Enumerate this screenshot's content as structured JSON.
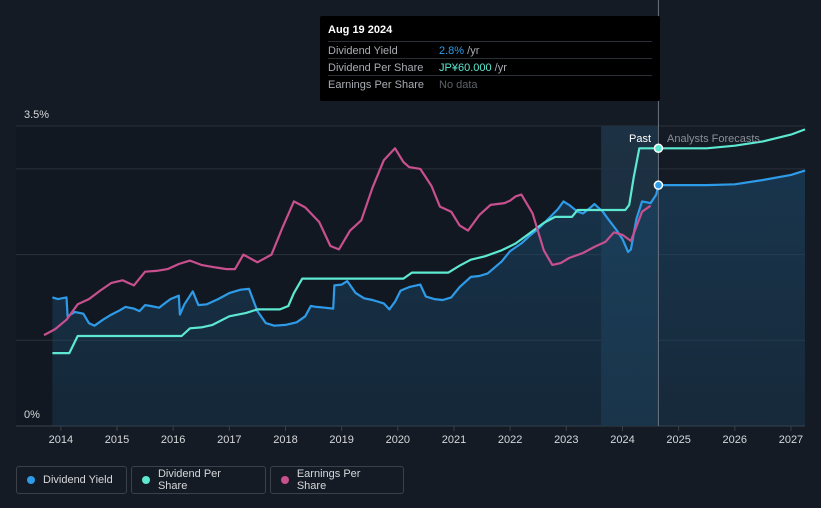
{
  "tooltip": {
    "date": "Aug 19 2024",
    "rows": [
      {
        "label": "Dividend Yield",
        "value": "2.8%",
        "unit": " /yr",
        "color": "#2e9be8"
      },
      {
        "label": "Dividend Per Share",
        "value": "JP¥60.000",
        "unit": " /yr",
        "color": "#5de8d2"
      },
      {
        "label": "Earnings Per Share",
        "value": "No data",
        "unit": "",
        "color": "#5c6168"
      }
    ]
  },
  "chart_data": {
    "type": "line",
    "ylim_label_top": "3.5%",
    "ylim_label_bottom": "0%",
    "ylim": [
      0,
      3.5
    ],
    "x_ticks": [
      "2014",
      "2015",
      "2016",
      "2017",
      "2018",
      "2019",
      "2020",
      "2021",
      "2022",
      "2023",
      "2024",
      "2025",
      "2026",
      "2027"
    ],
    "xlim": [
      2013.7,
      2027.25
    ],
    "past_label": "Past",
    "forecast_label": "Analysts Forecasts",
    "past_region": [
      2023.62,
      2024.64
    ],
    "grid": true,
    "legend_placement": "bottom-left",
    "series": [
      {
        "name": "Dividend Yield",
        "color": "#2e9be8",
        "filled": true,
        "points": [
          [
            2013.85,
            1.5
          ],
          [
            2013.95,
            1.48
          ],
          [
            2014.1,
            1.5
          ],
          [
            2014.12,
            1.28
          ],
          [
            2014.25,
            1.33
          ],
          [
            2014.4,
            1.31
          ],
          [
            2014.5,
            1.2
          ],
          [
            2014.6,
            1.17
          ],
          [
            2014.75,
            1.24
          ],
          [
            2014.9,
            1.3
          ],
          [
            2015.05,
            1.35
          ],
          [
            2015.15,
            1.39
          ],
          [
            2015.3,
            1.37
          ],
          [
            2015.4,
            1.34
          ],
          [
            2015.5,
            1.41
          ],
          [
            2015.6,
            1.4
          ],
          [
            2015.75,
            1.38
          ],
          [
            2015.85,
            1.43
          ],
          [
            2015.95,
            1.48
          ],
          [
            2016.1,
            1.52
          ],
          [
            2016.12,
            1.3
          ],
          [
            2016.2,
            1.42
          ],
          [
            2016.3,
            1.52
          ],
          [
            2016.35,
            1.57
          ],
          [
            2016.45,
            1.41
          ],
          [
            2016.6,
            1.42
          ],
          [
            2016.8,
            1.48
          ],
          [
            2017.0,
            1.55
          ],
          [
            2017.2,
            1.59
          ],
          [
            2017.35,
            1.6
          ],
          [
            2017.5,
            1.34
          ],
          [
            2017.65,
            1.2
          ],
          [
            2017.8,
            1.17
          ],
          [
            2018.0,
            1.18
          ],
          [
            2018.2,
            1.21
          ],
          [
            2018.35,
            1.28
          ],
          [
            2018.45,
            1.4
          ],
          [
            2018.55,
            1.39
          ],
          [
            2018.7,
            1.38
          ],
          [
            2018.85,
            1.37
          ],
          [
            2018.87,
            1.64
          ],
          [
            2019.0,
            1.65
          ],
          [
            2019.1,
            1.69
          ],
          [
            2019.25,
            1.55
          ],
          [
            2019.4,
            1.49
          ],
          [
            2019.55,
            1.47
          ],
          [
            2019.75,
            1.43
          ],
          [
            2019.85,
            1.36
          ],
          [
            2019.95,
            1.45
          ],
          [
            2020.05,
            1.58
          ],
          [
            2020.2,
            1.62
          ],
          [
            2020.4,
            1.65
          ],
          [
            2020.5,
            1.51
          ],
          [
            2020.65,
            1.48
          ],
          [
            2020.8,
            1.47
          ],
          [
            2020.95,
            1.5
          ],
          [
            2021.1,
            1.62
          ],
          [
            2021.3,
            1.74
          ],
          [
            2021.45,
            1.75
          ],
          [
            2021.6,
            1.78
          ],
          [
            2021.85,
            1.92
          ],
          [
            2022.0,
            2.04
          ],
          [
            2022.2,
            2.13
          ],
          [
            2022.35,
            2.22
          ],
          [
            2022.5,
            2.3
          ],
          [
            2022.7,
            2.43
          ],
          [
            2022.85,
            2.53
          ],
          [
            2022.95,
            2.62
          ],
          [
            2023.05,
            2.58
          ],
          [
            2023.2,
            2.5
          ],
          [
            2023.3,
            2.48
          ],
          [
            2023.45,
            2.56
          ],
          [
            2023.5,
            2.59
          ],
          [
            2023.65,
            2.5
          ],
          [
            2023.75,
            2.41
          ],
          [
            2023.9,
            2.28
          ],
          [
            2024.0,
            2.18
          ],
          [
            2024.1,
            2.03
          ],
          [
            2024.15,
            2.06
          ],
          [
            2024.25,
            2.42
          ],
          [
            2024.35,
            2.62
          ],
          [
            2024.5,
            2.6
          ],
          [
            2024.6,
            2.7
          ],
          [
            2024.64,
            2.81
          ],
          [
            2025.0,
            2.81
          ],
          [
            2025.5,
            2.81
          ],
          [
            2026.0,
            2.82
          ],
          [
            2026.5,
            2.87
          ],
          [
            2027.0,
            2.93
          ],
          [
            2027.25,
            2.98
          ]
        ]
      },
      {
        "name": "Dividend Per Share",
        "color": "#5de8d2",
        "filled": false,
        "points": [
          [
            2013.85,
            0.85
          ],
          [
            2014.15,
            0.85
          ],
          [
            2014.3,
            1.05
          ],
          [
            2014.5,
            1.05
          ],
          [
            2015.0,
            1.05
          ],
          [
            2016.15,
            1.05
          ],
          [
            2016.3,
            1.14
          ],
          [
            2016.5,
            1.15
          ],
          [
            2016.7,
            1.18
          ],
          [
            2017.0,
            1.28
          ],
          [
            2017.3,
            1.32
          ],
          [
            2017.5,
            1.36
          ],
          [
            2017.9,
            1.36
          ],
          [
            2018.05,
            1.4
          ],
          [
            2018.15,
            1.55
          ],
          [
            2018.3,
            1.72
          ],
          [
            2018.45,
            1.72
          ],
          [
            2019.0,
            1.72
          ],
          [
            2020.1,
            1.72
          ],
          [
            2020.25,
            1.79
          ],
          [
            2020.9,
            1.79
          ],
          [
            2021.1,
            1.87
          ],
          [
            2021.3,
            1.94
          ],
          [
            2021.55,
            1.98
          ],
          [
            2021.85,
            2.05
          ],
          [
            2022.1,
            2.13
          ],
          [
            2022.35,
            2.25
          ],
          [
            2022.6,
            2.37
          ],
          [
            2022.8,
            2.44
          ],
          [
            2023.1,
            2.44
          ],
          [
            2023.2,
            2.52
          ],
          [
            2023.6,
            2.52
          ],
          [
            2024.05,
            2.52
          ],
          [
            2024.12,
            2.58
          ],
          [
            2024.2,
            2.9
          ],
          [
            2024.3,
            3.24
          ],
          [
            2024.64,
            3.24
          ],
          [
            2025.0,
            3.24
          ],
          [
            2025.5,
            3.24
          ],
          [
            2026.0,
            3.27
          ],
          [
            2026.5,
            3.32
          ],
          [
            2027.0,
            3.4
          ],
          [
            2027.25,
            3.46
          ]
        ]
      },
      {
        "name": "Earnings Per Share",
        "color": "#c8508f",
        "filled": false,
        "points": [
          [
            2013.7,
            1.06
          ],
          [
            2013.9,
            1.13
          ],
          [
            2014.1,
            1.24
          ],
          [
            2014.3,
            1.42
          ],
          [
            2014.5,
            1.48
          ],
          [
            2014.7,
            1.58
          ],
          [
            2014.9,
            1.67
          ],
          [
            2015.1,
            1.7
          ],
          [
            2015.3,
            1.64
          ],
          [
            2015.5,
            1.8
          ],
          [
            2015.7,
            1.81
          ],
          [
            2015.9,
            1.83
          ],
          [
            2016.1,
            1.89
          ],
          [
            2016.3,
            1.93
          ],
          [
            2016.5,
            1.88
          ],
          [
            2016.75,
            1.85
          ],
          [
            2016.95,
            1.83
          ],
          [
            2017.1,
            1.83
          ],
          [
            2017.25,
            2.0
          ],
          [
            2017.5,
            1.91
          ],
          [
            2017.75,
            2.0
          ],
          [
            2017.95,
            2.32
          ],
          [
            2018.15,
            2.62
          ],
          [
            2018.35,
            2.55
          ],
          [
            2018.6,
            2.38
          ],
          [
            2018.8,
            2.1
          ],
          [
            2018.95,
            2.06
          ],
          [
            2019.15,
            2.28
          ],
          [
            2019.35,
            2.4
          ],
          [
            2019.55,
            2.78
          ],
          [
            2019.75,
            3.1
          ],
          [
            2019.95,
            3.24
          ],
          [
            2020.1,
            3.08
          ],
          [
            2020.2,
            3.02
          ],
          [
            2020.4,
            3.0
          ],
          [
            2020.6,
            2.8
          ],
          [
            2020.75,
            2.56
          ],
          [
            2020.95,
            2.5
          ],
          [
            2021.1,
            2.34
          ],
          [
            2021.25,
            2.28
          ],
          [
            2021.45,
            2.46
          ],
          [
            2021.65,
            2.58
          ],
          [
            2021.9,
            2.6
          ],
          [
            2022.0,
            2.63
          ],
          [
            2022.1,
            2.68
          ],
          [
            2022.2,
            2.7
          ],
          [
            2022.4,
            2.48
          ],
          [
            2022.6,
            2.05
          ],
          [
            2022.75,
            1.88
          ],
          [
            2022.9,
            1.9
          ],
          [
            2023.05,
            1.96
          ],
          [
            2023.3,
            2.02
          ],
          [
            2023.5,
            2.09
          ],
          [
            2023.7,
            2.15
          ],
          [
            2023.85,
            2.26
          ],
          [
            2024.0,
            2.23
          ],
          [
            2024.15,
            2.16
          ],
          [
            2024.35,
            2.5
          ],
          [
            2024.5,
            2.57
          ]
        ]
      }
    ]
  },
  "legend": [
    {
      "label": "Dividend Yield",
      "color": "#2e9be8"
    },
    {
      "label": "Dividend Per Share",
      "color": "#5de8d2"
    },
    {
      "label": "Earnings Per Share",
      "color": "#c8508f"
    }
  ]
}
